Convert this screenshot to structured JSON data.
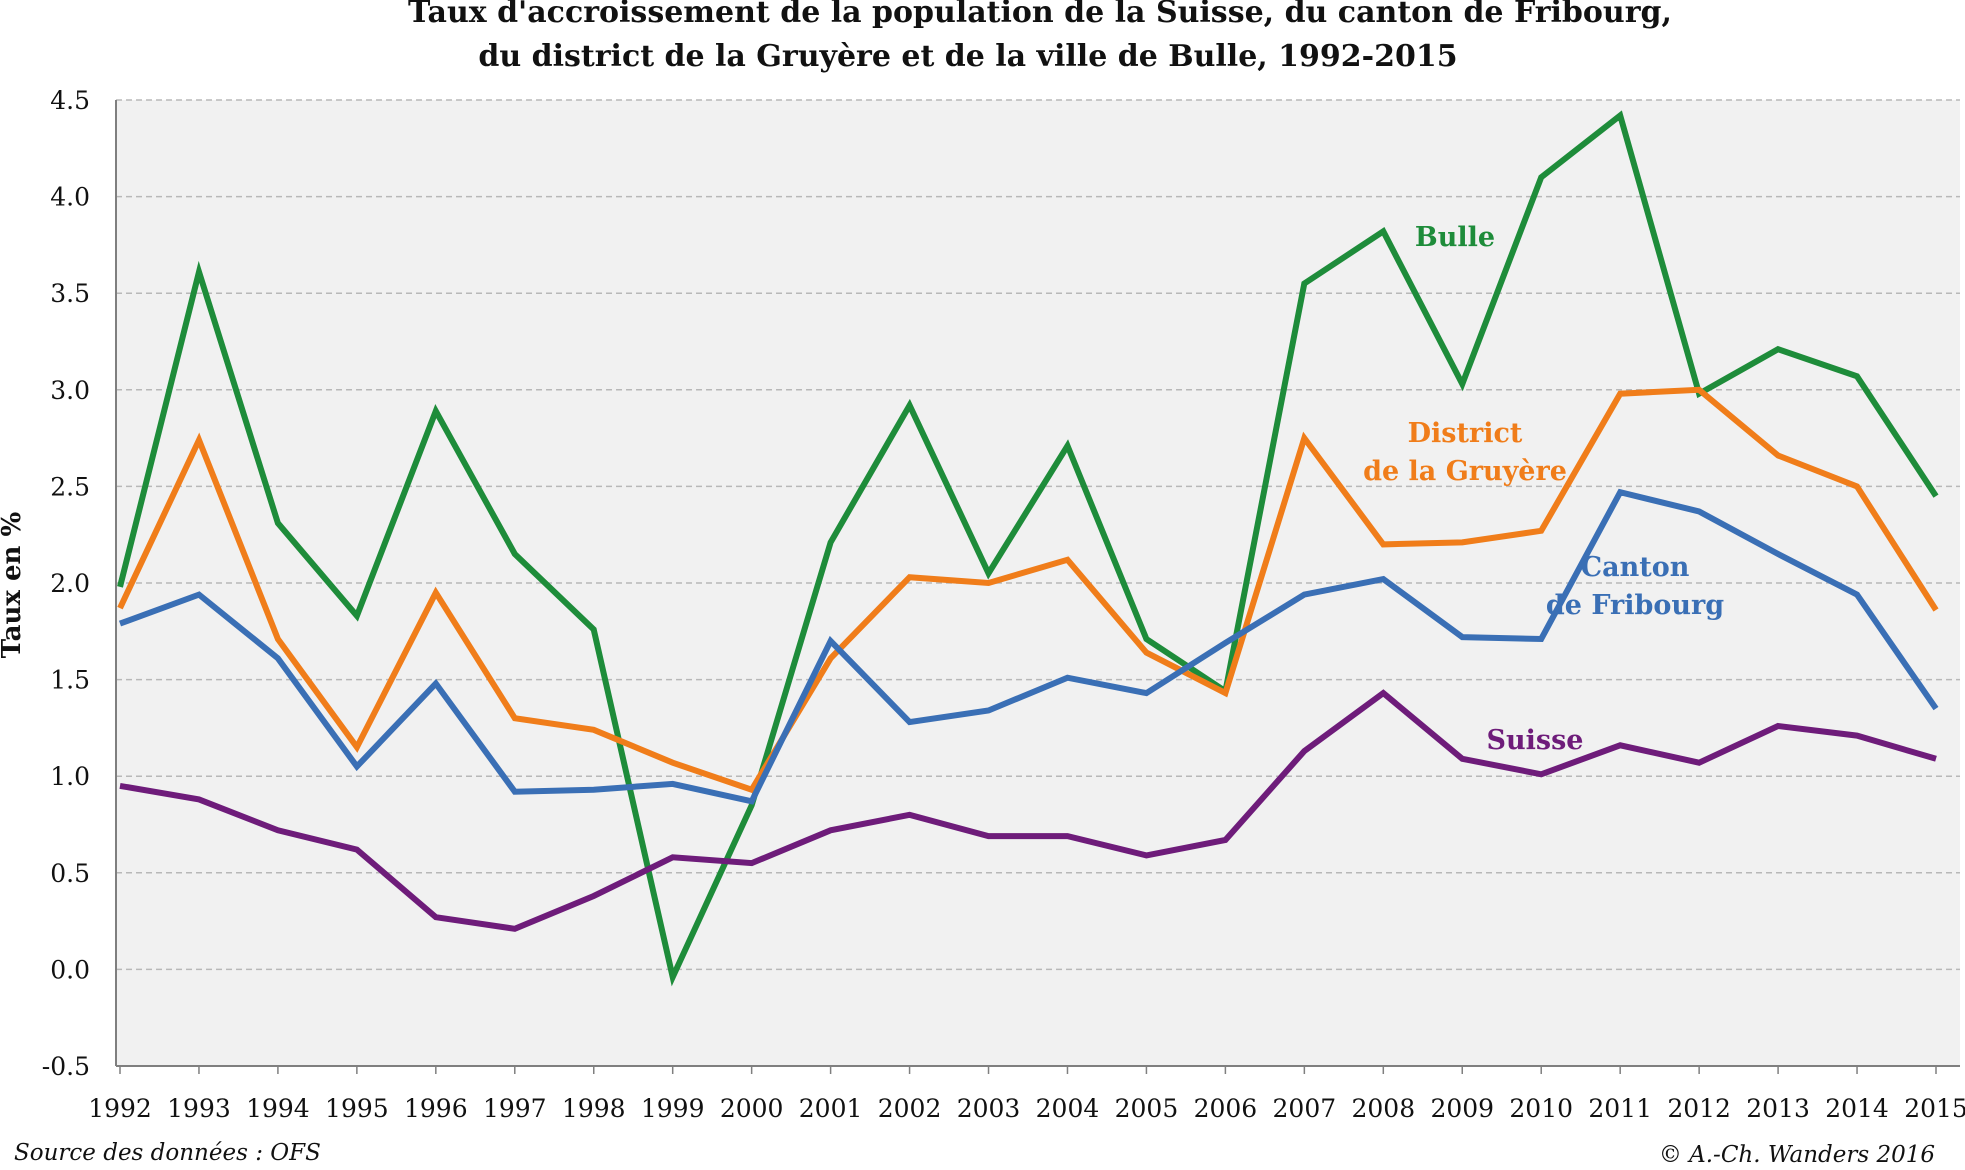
{
  "chart_data": {
    "type": "line",
    "title_lines": [
      "Taux d'accroissement de la population de la Suisse, du canton de Fribourg,",
      "du district de la Gruyère et de la ville de Bulle, 1992-2015"
    ],
    "ylabel": "Taux en %",
    "xlabel": "",
    "ylim": [
      -0.5,
      4.5
    ],
    "y_ticks": [
      "4.5",
      "4.0",
      "3.5",
      "3.0",
      "2.5",
      "2.0",
      "1.5",
      "1.0",
      "0.5",
      "0.0",
      "-0.5"
    ],
    "grid": "horizontal dashed",
    "x": [
      "1992",
      "1993",
      "1994",
      "1995",
      "1996",
      "1997",
      "1998",
      "1999",
      "2000",
      "2001",
      "2002",
      "2003",
      "2004",
      "2005",
      "2006",
      "2007",
      "2008",
      "2009",
      "2010",
      "2011",
      "2012",
      "2013",
      "2014",
      "2015"
    ],
    "series": [
      {
        "name": "Bulle",
        "color": "#1e8c3a",
        "values": [
          1.98,
          3.61,
          2.31,
          1.83,
          2.89,
          2.15,
          1.76,
          -0.04,
          0.85,
          2.21,
          2.92,
          2.05,
          2.71,
          1.71,
          1.44,
          3.55,
          3.82,
          3.03,
          4.1,
          4.42,
          2.98,
          3.21,
          3.07,
          2.45
        ]
      },
      {
        "name": "District de la Gruyère",
        "label_lines": [
          "District",
          "de la Gruyère"
        ],
        "color": "#f07d1a",
        "values": [
          1.87,
          2.74,
          1.71,
          1.15,
          1.95,
          1.3,
          1.24,
          1.07,
          0.93,
          1.61,
          2.03,
          2.0,
          2.12,
          1.64,
          1.43,
          2.75,
          2.2,
          2.21,
          2.27,
          2.98,
          3.0,
          2.66,
          2.5,
          1.86
        ]
      },
      {
        "name": "Canton de Fribourg",
        "label_lines": [
          "Canton",
          "de Fribourg"
        ],
        "color": "#3a6fb5",
        "values": [
          1.79,
          1.94,
          1.61,
          1.05,
          1.48,
          0.92,
          0.93,
          0.96,
          0.87,
          1.7,
          1.28,
          1.34,
          1.51,
          1.43,
          1.69,
          1.94,
          2.02,
          1.72,
          1.71,
          2.47,
          2.37,
          2.15,
          1.94,
          1.35
        ]
      },
      {
        "name": "Suisse",
        "color": "#6e1c7a",
        "values": [
          0.95,
          0.88,
          0.72,
          0.62,
          0.27,
          0.21,
          0.38,
          0.58,
          0.55,
          0.72,
          0.8,
          0.69,
          0.69,
          0.59,
          0.67,
          1.13,
          1.43,
          1.09,
          1.01,
          1.16,
          1.07,
          1.26,
          1.21,
          1.09
        ]
      }
    ]
  },
  "footer": {
    "source": "Source des données : OFS",
    "copyright": "© A.-Ch. Wanders 2016"
  },
  "colors": {
    "plot_background": "#f1f1f1",
    "grid": "#b8b8b8",
    "axis": "#7f7f7f"
  }
}
